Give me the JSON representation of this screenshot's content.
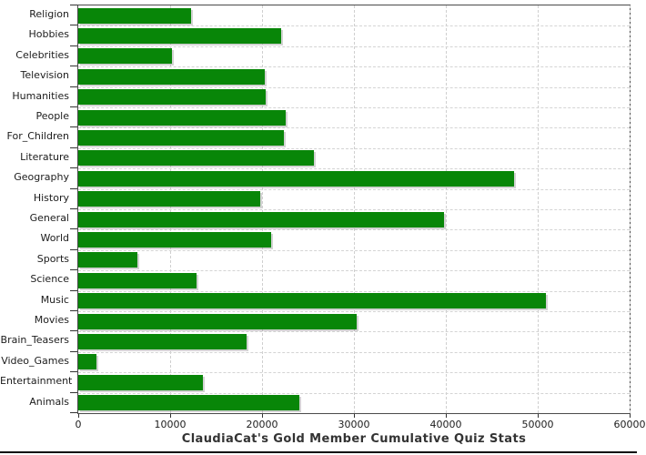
{
  "chart_data": {
    "type": "bar",
    "orientation": "horizontal",
    "title": "ClaudiaCat's Gold Member Cumulative Quiz Stats",
    "xlabel": "",
    "ylabel": "",
    "categories": [
      "Religion",
      "Hobbies",
      "Celebrities",
      "Television",
      "Humanities",
      "People",
      "For_Children",
      "Literature",
      "Geography",
      "History",
      "General",
      "World",
      "Sports",
      "Science",
      "Music",
      "Movies",
      "Brain_Teasers",
      "Video_Games",
      "Entertainment",
      "Animals"
    ],
    "values": [
      12300,
      22100,
      10200,
      20300,
      20400,
      22600,
      22400,
      25600,
      47400,
      19800,
      39800,
      21000,
      6400,
      12900,
      50900,
      30300,
      18300,
      2000,
      13600,
      24100
    ],
    "xlim": [
      0,
      60000
    ],
    "xticks": [
      0,
      10000,
      20000,
      30000,
      40000,
      50000,
      60000
    ],
    "grid": "dashed",
    "legend": "none",
    "bar_color": "#088608",
    "grid_color": "#cfcfcf",
    "axis_color": "#333333",
    "text_color": "#1c1c1c",
    "title_color": "#333333",
    "background_color": "#ffffff"
  }
}
